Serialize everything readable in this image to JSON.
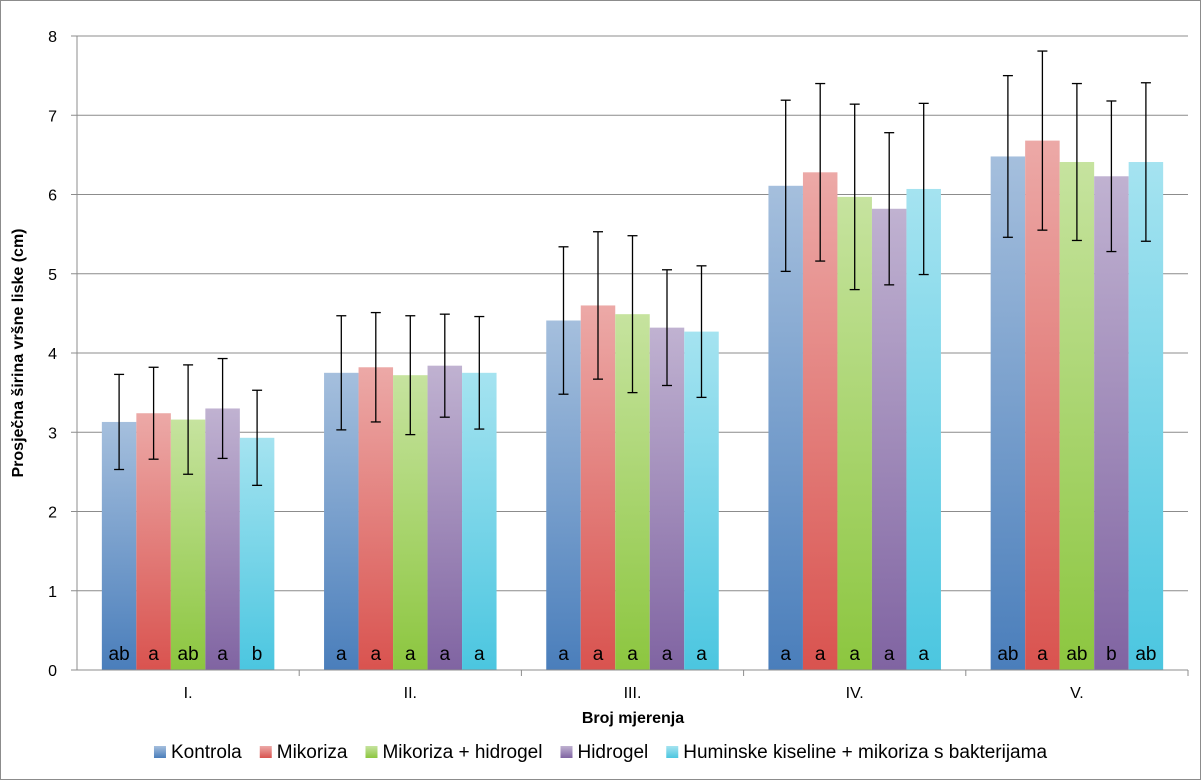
{
  "chart_data": {
    "type": "bar",
    "title": "",
    "xlabel": "Broj mjerenja",
    "ylabel": "Prosječna širina vršne liske (cm)",
    "ylim": [
      0,
      8
    ],
    "yticks": [
      "0",
      "1",
      "2",
      "3",
      "4",
      "5",
      "6",
      "7",
      "8"
    ],
    "grid": true,
    "legend_position": "bottom",
    "categories": [
      "I.",
      "II.",
      "III.",
      "IV.",
      "V."
    ],
    "series": [
      {
        "name": "Kontrola",
        "color": "#4a7ebb",
        "values": [
          3.13,
          3.75,
          4.41,
          6.11,
          6.48
        ],
        "error": [
          0.6,
          0.72,
          0.93,
          1.08,
          1.02
        ],
        "letters": [
          "ab",
          "a",
          "a",
          "a",
          "ab"
        ]
      },
      {
        "name": "Mikoriza",
        "color": "#d9534f",
        "values": [
          3.24,
          3.82,
          4.6,
          6.28,
          6.68
        ],
        "error": [
          0.58,
          0.69,
          0.93,
          1.12,
          1.13
        ],
        "letters": [
          "a",
          "a",
          "a",
          "a",
          "a"
        ]
      },
      {
        "name": "Mikoriza + hidrogel",
        "color": "#8cc63f",
        "values": [
          3.16,
          3.72,
          4.49,
          5.97,
          6.41
        ],
        "error": [
          0.69,
          0.75,
          0.99,
          1.17,
          0.99
        ],
        "letters": [
          "ab",
          "a",
          "a",
          "a",
          "ab"
        ]
      },
      {
        "name": "Hidrogel",
        "color": "#8064a2",
        "values": [
          3.3,
          3.84,
          4.32,
          5.82,
          6.23
        ],
        "error": [
          0.63,
          0.65,
          0.73,
          0.96,
          0.95
        ],
        "letters": [
          "a",
          "a",
          "a",
          "a",
          "b"
        ]
      },
      {
        "name": "Huminske kiseline + mikoriza s bakterijama",
        "color": "#4bc6e0",
        "values": [
          2.93,
          3.75,
          4.27,
          6.07,
          6.41
        ],
        "error": [
          0.6,
          0.71,
          0.83,
          1.08,
          1.0
        ],
        "letters": [
          "b",
          "a",
          "a",
          "a",
          "ab"
        ]
      }
    ]
  }
}
